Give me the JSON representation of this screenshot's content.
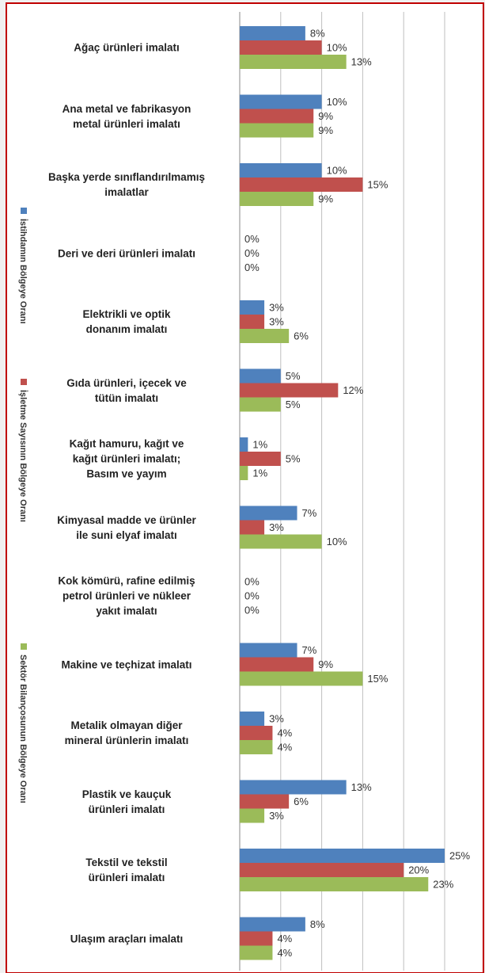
{
  "chart_data": {
    "type": "bar",
    "orientation": "horizontal",
    "categories": [
      "Ağaç ürünleri imalatı",
      "Ana metal ve fabrikasyon\nmetal ürünleri imalatı",
      "Başka yerde sınıflandırılmamış\nimalatlar",
      "Deri ve deri ürünleri imalatı",
      "Elektrikli ve optik\ndonanım imalatı",
      "Gıda ürünleri, içecek ve\ntütün imalatı",
      "Kağıt hamuru, kağıt ve\nkağıt ürünleri imalatı;\nBasım ve yayım",
      "Kimyasal madde ve ürünler\nile suni elyaf imalatı",
      "Kok kömürü, rafine edilmiş\npetrol ürünleri ve nükleer\nyakıt imalatı",
      "Makine ve teçhizat imalatı",
      "Metalik olmayan diğer\nmineral ürünlerin imalatı",
      "Plastik ve kauçuk\nürünleri imalatı",
      "Tekstil ve tekstil\nürünleri imalatı",
      "Ulaşım araçları imalatı"
    ],
    "series": [
      {
        "name": "İstihdamın Bölgeye Oranı",
        "color": "#4f81bd",
        "values": [
          8,
          10,
          10,
          0,
          3,
          5,
          1,
          7,
          0,
          7,
          3,
          13,
          25,
          8
        ],
        "value_labels": [
          "8%",
          "10%",
          "10%",
          "0%",
          "3%",
          "5%",
          "1%",
          "7%",
          "0%",
          "7%",
          "3%",
          "13%",
          "25%",
          "8%"
        ]
      },
      {
        "name": "İşletme Sayısının Bölgeye Oranı",
        "color": "#c0504d",
        "values": [
          10,
          9,
          15,
          0,
          3,
          12,
          5,
          3,
          0,
          9,
          4,
          6,
          20,
          4
        ],
        "value_labels": [
          "10%",
          "9%",
          "15%",
          "0%",
          "3%",
          "12%",
          "5%",
          "3%",
          "0%",
          "9%",
          "4%",
          "6%",
          "20%",
          "4%"
        ]
      },
      {
        "name": "Sektör Bilançosunun Bölgeye Oranı",
        "color": "#9bbb59",
        "values": [
          13,
          9,
          9,
          0,
          6,
          5,
          1,
          10,
          0,
          15,
          4,
          3,
          23,
          4
        ],
        "value_labels": [
          "13%",
          "9%",
          "9%",
          "0%",
          "6%",
          "5%",
          "1%",
          "10%",
          "0%",
          "15%",
          "4%",
          "3%",
          "23%",
          "4%"
        ]
      }
    ],
    "xlim": [
      0,
      25
    ],
    "xticks": [
      0,
      5,
      10,
      15,
      20,
      25
    ],
    "grid": true,
    "legend": "left"
  }
}
